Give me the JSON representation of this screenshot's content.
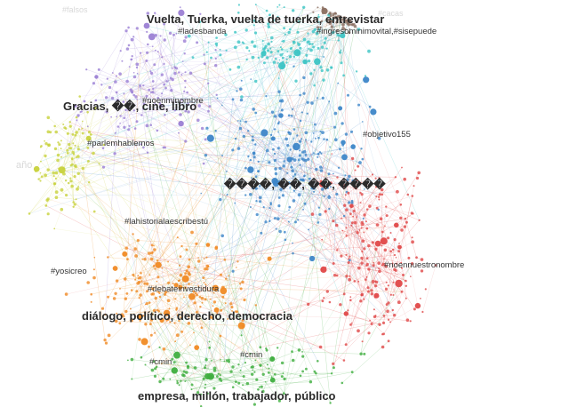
{
  "topics": {
    "vuelta": "Vuelta, Tuerka, vuelta de tuerka, entrevistar",
    "gracias": "Gracias, ��, cine, libro",
    "emoji": "����, ��, ��, ����",
    "dialogo": "diálogo, político, derecho, democracia",
    "empresa": "empresa, millón, trabajador, público"
  },
  "hashtags": {
    "ladesbanda": "#ladesbanda",
    "ingreso": "#ingresominimovital,#sisepuede",
    "nonombre": "#noenminombre",
    "parlem": "#parlemhablemos",
    "objetivo": "#objetivo155",
    "historia": "#lahistorialaescribestú",
    "yosi": "#yosicreo",
    "nuestro": "#noennuestronombre",
    "debate": "#debateinvestidura",
    "cmin1": "#cmin",
    "cmin2": "#cmin"
  },
  "faint_labels": {
    "top_left": "#falsos",
    "left": "año",
    "top_right": "#cacas"
  },
  "clusters": [
    {
      "name": "purple",
      "color": "#9b7fd4"
    },
    {
      "name": "teal",
      "color": "#3cc4c4"
    },
    {
      "name": "brown",
      "color": "#8a6e60"
    },
    {
      "name": "yellow-green",
      "color": "#c8d23c"
    },
    {
      "name": "blue",
      "color": "#3d86c8"
    },
    {
      "name": "red",
      "color": "#e04848"
    },
    {
      "name": "orange",
      "color": "#f08a24"
    },
    {
      "name": "green",
      "color": "#3fae3f"
    }
  ]
}
